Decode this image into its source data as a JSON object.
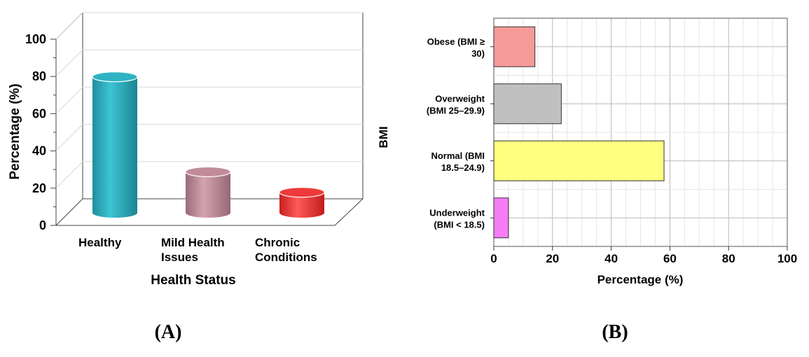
{
  "chart_data": [
    {
      "type": "bar",
      "panel_label": "(A)",
      "categories": [
        "Healthy",
        "Mild Health Issues",
        "Chronic Conditions"
      ],
      "category_lines": [
        [
          "Healthy"
        ],
        [
          "Mild Health",
          "Issues"
        ],
        [
          "Chronic",
          "Conditions"
        ]
      ],
      "values": [
        73,
        22,
        11
      ],
      "colors": [
        "#2fb3c4",
        "#c08c9a",
        "#ee3a3a"
      ],
      "xlabel": "Health Status",
      "ylabel": "Percentage (%)",
      "ylim": [
        0,
        100
      ],
      "yticks": [
        0,
        20,
        40,
        60,
        80,
        100
      ],
      "grid": true,
      "style": "3d-cylinder"
    },
    {
      "type": "bar",
      "orientation": "horizontal",
      "panel_label": "(B)",
      "categories": [
        "Obese (BMI ≥ 30)",
        "Overweight (BMI 25–29.9)",
        "Normal (BMI 18.5–24.9)",
        "Underweight (BMI < 18.5)"
      ],
      "category_lines": [
        [
          "Obese (BMI ≥",
          "30)"
        ],
        [
          "Overweight",
          "(BMI 25–29.9)"
        ],
        [
          "Normal (BMI",
          "18.5–24.9)"
        ],
        [
          "Underweight",
          "(BMI < 18.5)"
        ]
      ],
      "values": [
        14,
        23,
        58,
        5
      ],
      "colors": [
        "#f59a98",
        "#c0c0c0",
        "#ffff80",
        "#f57cf5"
      ],
      "xlabel": "Percentage (%)",
      "ylabel": "BMI",
      "xlim": [
        0,
        100
      ],
      "xticks": [
        0,
        20,
        40,
        60,
        80,
        100
      ],
      "grid": true
    }
  ]
}
